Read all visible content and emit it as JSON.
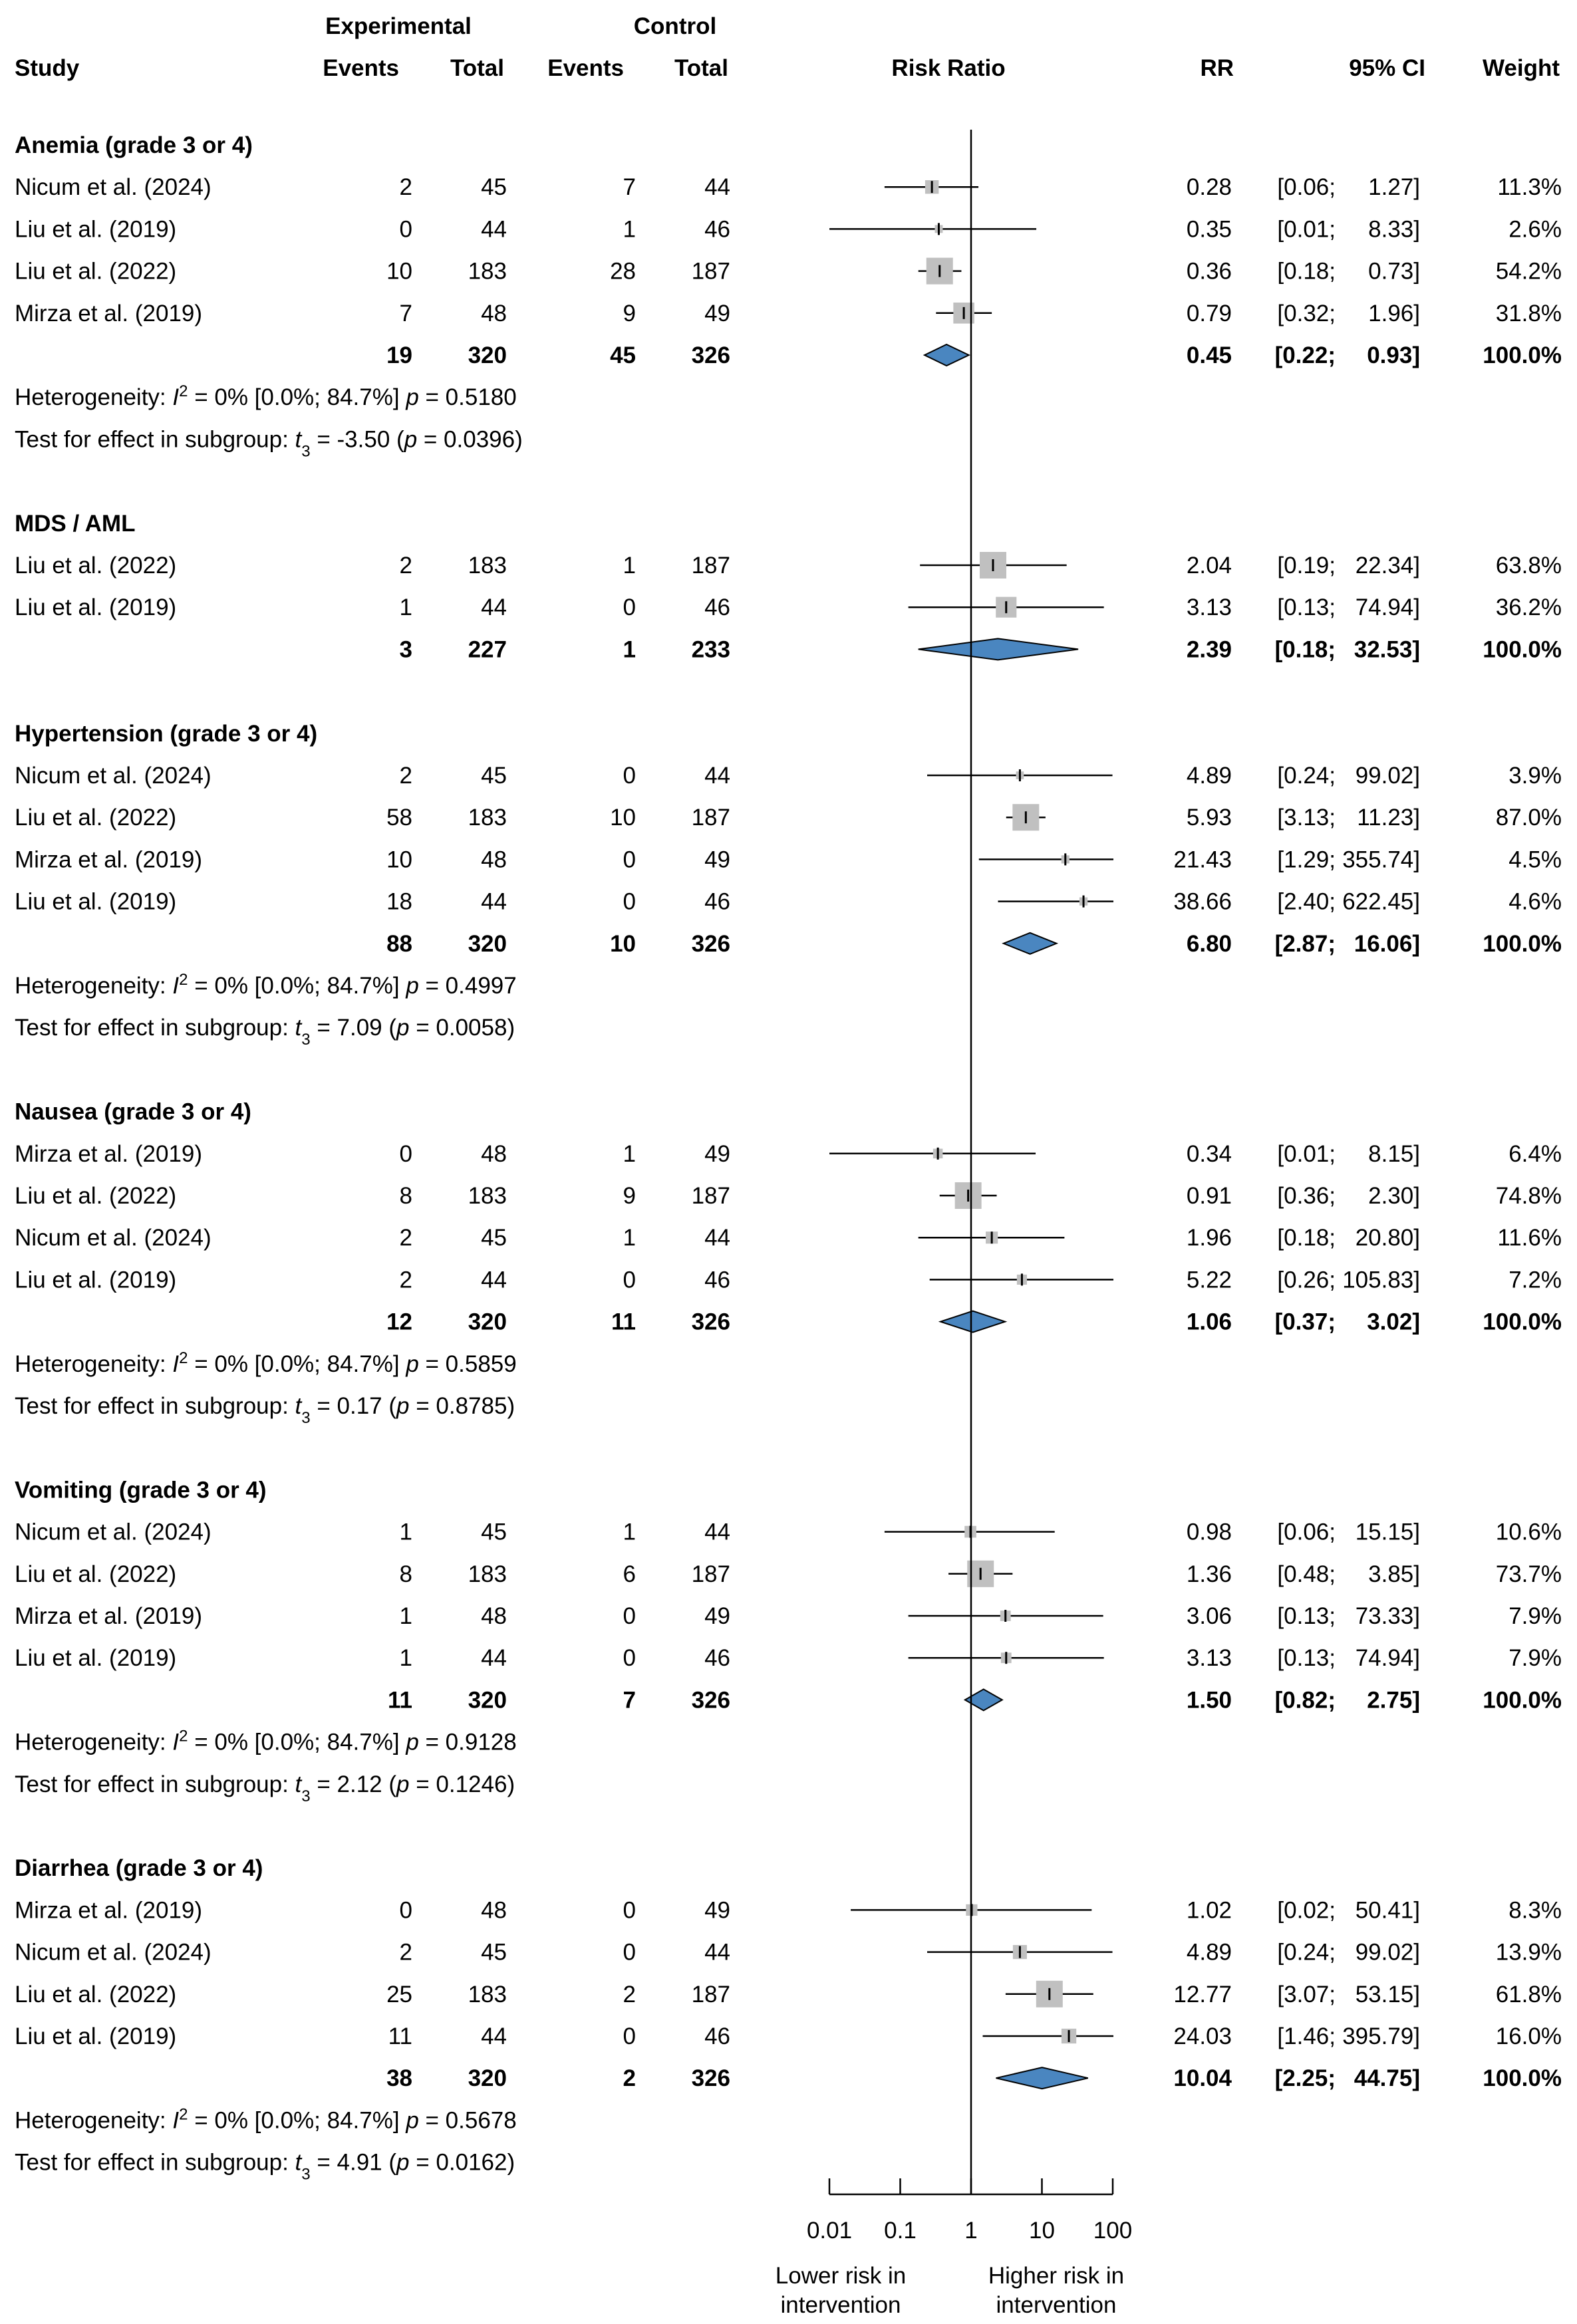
{
  "chart_data": {
    "type": "forest",
    "measure": "Risk Ratio",
    "x_scale": "log",
    "x_ticks": [
      0.01,
      0.1,
      1,
      10,
      100
    ],
    "x_tick_labels": [
      "0.01",
      "0.1",
      "1",
      "10",
      "100"
    ],
    "x_label_left": [
      "Lower risk in",
      "intervention"
    ],
    "x_label_right": [
      "Higher risk in",
      "intervention"
    ],
    "colors": {
      "square": "#c0c0c0",
      "diamond": "#4a86c0",
      "line": "#000000"
    },
    "headers": {
      "group_exp": "Experimental",
      "group_ctrl": "Control",
      "study": "Study",
      "events": "Events",
      "total": "Total",
      "risk_ratio": "Risk Ratio",
      "rr": "RR",
      "ci": "95% CI",
      "weight": "Weight"
    },
    "subgroups": [
      {
        "name": "Anemia (grade 3 or 4)",
        "studies": [
          {
            "study": "Nicum et al. (2024)",
            "e_events": "2",
            "e_total": "45",
            "c_events": "7",
            "c_total": "44",
            "rr": 0.28,
            "lo": 0.06,
            "hi": 1.27,
            "rr_text": "0.28",
            "ci_lo_text": "[0.06;",
            "ci_hi_text": "1.27]",
            "weight": 11.3,
            "weight_text": "11.3%"
          },
          {
            "study": "Liu et al. (2019)",
            "e_events": "0",
            "e_total": "44",
            "c_events": "1",
            "c_total": "46",
            "rr": 0.35,
            "lo": 0.01,
            "hi": 8.33,
            "rr_text": "0.35",
            "ci_lo_text": "[0.01;",
            "ci_hi_text": "8.33]",
            "weight": 2.6,
            "weight_text": "2.6%"
          },
          {
            "study": "Liu et al. (2022)",
            "e_events": "10",
            "e_total": "183",
            "c_events": "28",
            "c_total": "187",
            "rr": 0.36,
            "lo": 0.18,
            "hi": 0.73,
            "rr_text": "0.36",
            "ci_lo_text": "[0.18;",
            "ci_hi_text": "0.73]",
            "weight": 54.2,
            "weight_text": "54.2%"
          },
          {
            "study": "Mirza et al. (2019)",
            "e_events": "7",
            "e_total": "48",
            "c_events": "9",
            "c_total": "49",
            "rr": 0.79,
            "lo": 0.32,
            "hi": 1.96,
            "rr_text": "0.79",
            "ci_lo_text": "[0.32;",
            "ci_hi_text": "1.96]",
            "weight": 31.8,
            "weight_text": "31.8%"
          }
        ],
        "pooled": {
          "e_events": "19",
          "e_total": "320",
          "c_events": "45",
          "c_total": "326",
          "rr": 0.45,
          "lo": 0.22,
          "hi": 0.93,
          "rr_text": "0.45",
          "ci_lo_text": "[0.22;",
          "ci_hi_text": "0.93]",
          "weight_text": "100.0%"
        },
        "heterogeneity": {
          "label": "Heterogeneity: ",
          "i2_value": " = 0% [0.0%; 84.7%] ",
          "p_value": " = 0.5180"
        },
        "test": {
          "label": "Test for effect in subgroup: ",
          "df": "3",
          "t_value": " = -3.50 (",
          "p_value": " = 0.0396)"
        }
      },
      {
        "name": "MDS / AML",
        "studies": [
          {
            "study": "Liu et al. (2022)",
            "e_events": "2",
            "e_total": "183",
            "c_events": "1",
            "c_total": "187",
            "rr": 2.04,
            "lo": 0.19,
            "hi": 22.34,
            "rr_text": "2.04",
            "ci_lo_text": "[0.19;",
            "ci_hi_text": "22.34]",
            "weight": 63.8,
            "weight_text": "63.8%"
          },
          {
            "study": "Liu et al. (2019)",
            "e_events": "1",
            "e_total": "44",
            "c_events": "0",
            "c_total": "46",
            "rr": 3.13,
            "lo": 0.13,
            "hi": 74.94,
            "rr_text": "3.13",
            "ci_lo_text": "[0.13;",
            "ci_hi_text": "74.94]",
            "weight": 36.2,
            "weight_text": "36.2%"
          }
        ],
        "pooled": {
          "e_events": "3",
          "e_total": "227",
          "c_events": "1",
          "c_total": "233",
          "rr": 2.39,
          "lo": 0.18,
          "hi": 32.53,
          "rr_text": "2.39",
          "ci_lo_text": "[0.18;",
          "ci_hi_text": "32.53]",
          "weight_text": "100.0%"
        }
      },
      {
        "name": "Hypertension (grade 3 or 4)",
        "studies": [
          {
            "study": "Nicum et al. (2024)",
            "e_events": "2",
            "e_total": "45",
            "c_events": "0",
            "c_total": "44",
            "rr": 4.89,
            "lo": 0.24,
            "hi": 99.02,
            "rr_text": "4.89",
            "ci_lo_text": "[0.24;",
            "ci_hi_text": "99.02]",
            "weight": 3.9,
            "weight_text": "3.9%"
          },
          {
            "study": "Liu et al. (2022)",
            "e_events": "58",
            "e_total": "183",
            "c_events": "10",
            "c_total": "187",
            "rr": 5.93,
            "lo": 3.13,
            "hi": 11.23,
            "rr_text": "5.93",
            "ci_lo_text": "[3.13;",
            "ci_hi_text": "11.23]",
            "weight": 87.0,
            "weight_text": "87.0%"
          },
          {
            "study": "Mirza et al. (2019)",
            "e_events": "10",
            "e_total": "48",
            "c_events": "0",
            "c_total": "49",
            "rr": 21.43,
            "lo": 1.29,
            "hi": 355.74,
            "rr_text": "21.43",
            "ci_lo_text": "[1.29;",
            "ci_hi_text": "355.74]",
            "weight": 4.5,
            "weight_text": "4.5%"
          },
          {
            "study": "Liu et al. (2019)",
            "e_events": "18",
            "e_total": "44",
            "c_events": "0",
            "c_total": "46",
            "rr": 38.66,
            "lo": 2.4,
            "hi": 622.45,
            "rr_text": "38.66",
            "ci_lo_text": "[2.40;",
            "ci_hi_text": "622.45]",
            "weight": 4.6,
            "weight_text": "4.6%"
          }
        ],
        "pooled": {
          "e_events": "88",
          "e_total": "320",
          "c_events": "10",
          "c_total": "326",
          "rr": 6.8,
          "lo": 2.87,
          "hi": 16.06,
          "rr_text": "6.80",
          "ci_lo_text": "[2.87;",
          "ci_hi_text": "16.06]",
          "weight_text": "100.0%"
        },
        "heterogeneity": {
          "label": "Heterogeneity: ",
          "i2_value": " = 0% [0.0%; 84.7%] ",
          "p_value": " = 0.4997"
        },
        "test": {
          "label": "Test for effect in subgroup: ",
          "df": "3",
          "t_value": " = 7.09 (",
          "p_value": " = 0.0058)"
        }
      },
      {
        "name": "Nausea (grade 3 or 4)",
        "studies": [
          {
            "study": "Mirza et al. (2019)",
            "e_events": "0",
            "e_total": "48",
            "c_events": "1",
            "c_total": "49",
            "rr": 0.34,
            "lo": 0.01,
            "hi": 8.15,
            "rr_text": "0.34",
            "ci_lo_text": "[0.01;",
            "ci_hi_text": "8.15]",
            "weight": 6.4,
            "weight_text": "6.4%"
          },
          {
            "study": "Liu et al. (2022)",
            "e_events": "8",
            "e_total": "183",
            "c_events": "9",
            "c_total": "187",
            "rr": 0.91,
            "lo": 0.36,
            "hi": 2.3,
            "rr_text": "0.91",
            "ci_lo_text": "[0.36;",
            "ci_hi_text": "2.30]",
            "weight": 74.8,
            "weight_text": "74.8%"
          },
          {
            "study": "Nicum et al. (2024)",
            "e_events": "2",
            "e_total": "45",
            "c_events": "1",
            "c_total": "44",
            "rr": 1.96,
            "lo": 0.18,
            "hi": 20.8,
            "rr_text": "1.96",
            "ci_lo_text": "[0.18;",
            "ci_hi_text": "20.80]",
            "weight": 11.6,
            "weight_text": "11.6%"
          },
          {
            "study": "Liu et al. (2019)",
            "e_events": "2",
            "e_total": "44",
            "c_events": "0",
            "c_total": "46",
            "rr": 5.22,
            "lo": 0.26,
            "hi": 105.83,
            "rr_text": "5.22",
            "ci_lo_text": "[0.26;",
            "ci_hi_text": "105.83]",
            "weight": 7.2,
            "weight_text": "7.2%"
          }
        ],
        "pooled": {
          "e_events": "12",
          "e_total": "320",
          "c_events": "11",
          "c_total": "326",
          "rr": 1.06,
          "lo": 0.37,
          "hi": 3.02,
          "rr_text": "1.06",
          "ci_lo_text": "[0.37;",
          "ci_hi_text": "3.02]",
          "weight_text": "100.0%"
        },
        "heterogeneity": {
          "label": "Heterogeneity: ",
          "i2_value": " = 0% [0.0%; 84.7%] ",
          "p_value": " = 0.5859"
        },
        "test": {
          "label": "Test for effect in subgroup: ",
          "df": "3",
          "t_value": " = 0.17 (",
          "p_value": " = 0.8785)"
        }
      },
      {
        "name": "Vomiting (grade 3 or 4)",
        "studies": [
          {
            "study": "Nicum et al. (2024)",
            "e_events": "1",
            "e_total": "45",
            "c_events": "1",
            "c_total": "44",
            "rr": 0.98,
            "lo": 0.06,
            "hi": 15.15,
            "rr_text": "0.98",
            "ci_lo_text": "[0.06;",
            "ci_hi_text": "15.15]",
            "weight": 10.6,
            "weight_text": "10.6%"
          },
          {
            "study": "Liu et al. (2022)",
            "e_events": "8",
            "e_total": "183",
            "c_events": "6",
            "c_total": "187",
            "rr": 1.36,
            "lo": 0.48,
            "hi": 3.85,
            "rr_text": "1.36",
            "ci_lo_text": "[0.48;",
            "ci_hi_text": "3.85]",
            "weight": 73.7,
            "weight_text": "73.7%"
          },
          {
            "study": "Mirza et al. (2019)",
            "e_events": "1",
            "e_total": "48",
            "c_events": "0",
            "c_total": "49",
            "rr": 3.06,
            "lo": 0.13,
            "hi": 73.33,
            "rr_text": "3.06",
            "ci_lo_text": "[0.13;",
            "ci_hi_text": "73.33]",
            "weight": 7.9,
            "weight_text": "7.9%"
          },
          {
            "study": "Liu et al. (2019)",
            "e_events": "1",
            "e_total": "44",
            "c_events": "0",
            "c_total": "46",
            "rr": 3.13,
            "lo": 0.13,
            "hi": 74.94,
            "rr_text": "3.13",
            "ci_lo_text": "[0.13;",
            "ci_hi_text": "74.94]",
            "weight": 7.9,
            "weight_text": "7.9%"
          }
        ],
        "pooled": {
          "e_events": "11",
          "e_total": "320",
          "c_events": "7",
          "c_total": "326",
          "rr": 1.5,
          "lo": 0.82,
          "hi": 2.75,
          "rr_text": "1.50",
          "ci_lo_text": "[0.82;",
          "ci_hi_text": "2.75]",
          "weight_text": "100.0%"
        },
        "heterogeneity": {
          "label": "Heterogeneity: ",
          "i2_value": " = 0% [0.0%; 84.7%] ",
          "p_value": " = 0.9128"
        },
        "test": {
          "label": "Test for effect in subgroup: ",
          "df": "3",
          "t_value": " = 2.12 (",
          "p_value": " = 0.1246)"
        }
      },
      {
        "name": "Diarrhea (grade 3 or 4)",
        "studies": [
          {
            "study": "Mirza et al. (2019)",
            "e_events": "0",
            "e_total": "48",
            "c_events": "0",
            "c_total": "49",
            "rr": 1.02,
            "lo": 0.02,
            "hi": 50.41,
            "rr_text": "1.02",
            "ci_lo_text": "[0.02;",
            "ci_hi_text": "50.41]",
            "weight": 8.3,
            "weight_text": "8.3%"
          },
          {
            "study": "Nicum et al. (2024)",
            "e_events": "2",
            "e_total": "45",
            "c_events": "0",
            "c_total": "44",
            "rr": 4.89,
            "lo": 0.24,
            "hi": 99.02,
            "rr_text": "4.89",
            "ci_lo_text": "[0.24;",
            "ci_hi_text": "99.02]",
            "weight": 13.9,
            "weight_text": "13.9%"
          },
          {
            "study": "Liu et al. (2022)",
            "e_events": "25",
            "e_total": "183",
            "c_events": "2",
            "c_total": "187",
            "rr": 12.77,
            "lo": 3.07,
            "hi": 53.15,
            "rr_text": "12.77",
            "ci_lo_text": "[3.07;",
            "ci_hi_text": "53.15]",
            "weight": 61.8,
            "weight_text": "61.8%"
          },
          {
            "study": "Liu et al. (2019)",
            "e_events": "11",
            "e_total": "44",
            "c_events": "0",
            "c_total": "46",
            "rr": 24.03,
            "lo": 1.46,
            "hi": 395.79,
            "rr_text": "24.03",
            "ci_lo_text": "[1.46;",
            "ci_hi_text": "395.79]",
            "weight": 16.0,
            "weight_text": "16.0%"
          }
        ],
        "pooled": {
          "e_events": "38",
          "e_total": "320",
          "c_events": "2",
          "c_total": "326",
          "rr": 10.04,
          "lo": 2.25,
          "hi": 44.75,
          "rr_text": "10.04",
          "ci_lo_text": "[2.25;",
          "ci_hi_text": "44.75]",
          "weight_text": "100.0%"
        },
        "heterogeneity": {
          "label": "Heterogeneity: ",
          "i2_value": " = 0% [0.0%; 84.7%] ",
          "p_value": " = 0.5678"
        },
        "test": {
          "label": "Test for effect in subgroup: ",
          "df": "3",
          "t_value": " = 4.91 (",
          "p_value": " = 0.0162)"
        }
      }
    ]
  }
}
